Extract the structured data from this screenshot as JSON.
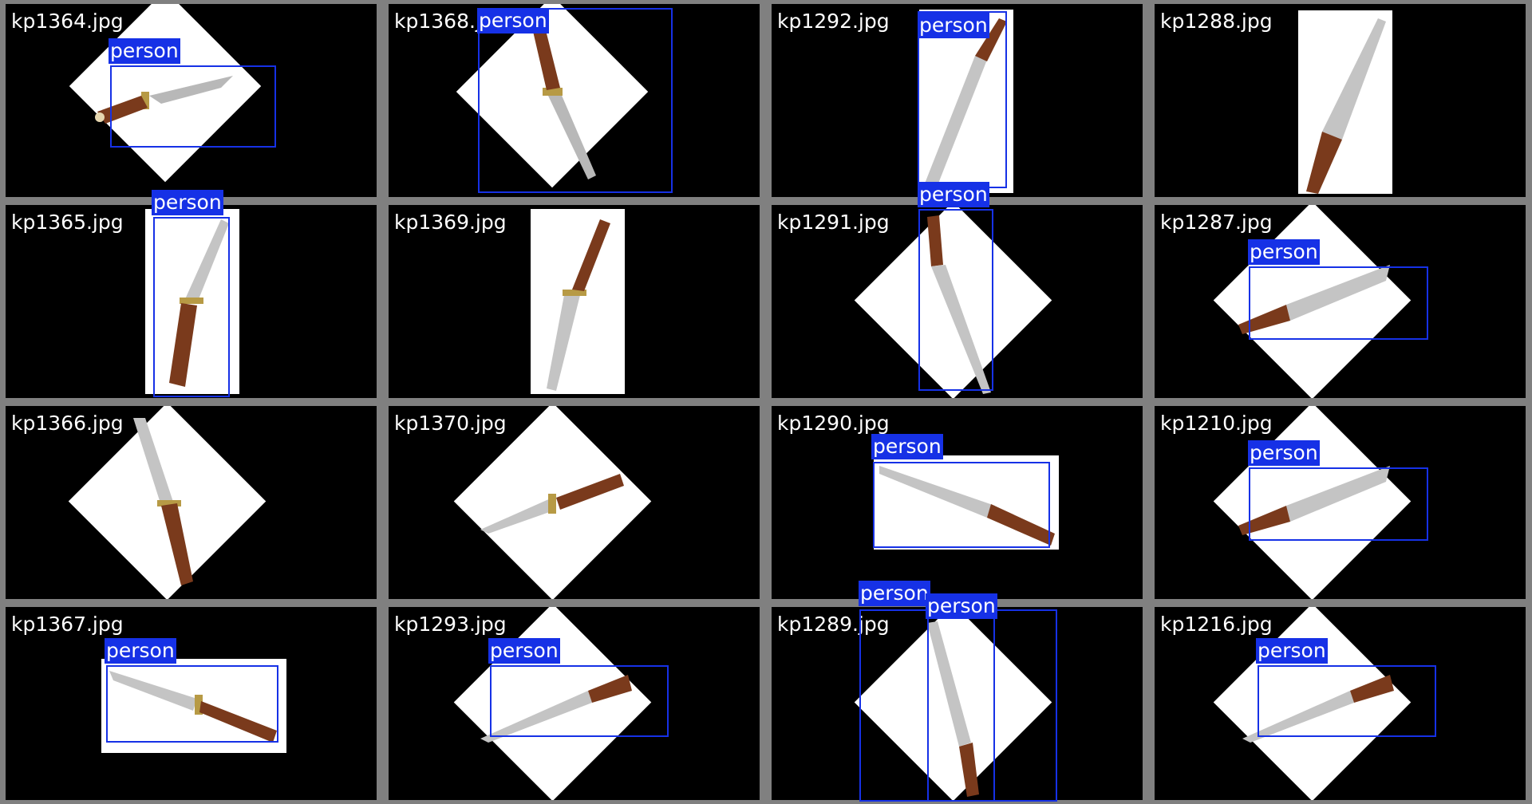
{
  "grid": {
    "cells": [
      {
        "filename": "kp1364.jpg"
      },
      {
        "filename": "kp1368.jpg"
      },
      {
        "filename": "kp1292.jpg"
      },
      {
        "filename": "kp1288.jpg"
      },
      {
        "filename": "kp1365.jpg"
      },
      {
        "filename": "kp1369.jpg"
      },
      {
        "filename": "kp1291.jpg"
      },
      {
        "filename": "kp1287.jpg"
      },
      {
        "filename": "kp1366.jpg"
      },
      {
        "filename": "kp1370.jpg"
      },
      {
        "filename": "kp1290.jpg"
      },
      {
        "filename": "kp1210.jpg"
      },
      {
        "filename": "kp1367.jpg"
      },
      {
        "filename": "kp1293.jpg"
      },
      {
        "filename": "kp1289.jpg"
      },
      {
        "filename": "kp1216.jpg"
      }
    ]
  },
  "detections": {
    "label": "person"
  },
  "colors": {
    "box": "#1631e6",
    "tile_border": "#808080",
    "background": "#000000"
  }
}
